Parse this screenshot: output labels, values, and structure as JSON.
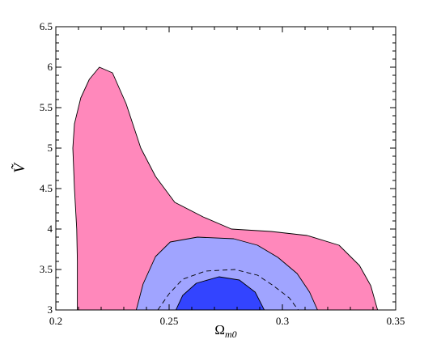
{
  "chart_data": {
    "type": "area",
    "title": "",
    "xlabel": "Ω",
    "xlabel_sub": "m0",
    "ylabel": "Ṽ",
    "xlim": [
      0.2,
      0.35
    ],
    "ylim": [
      3,
      6.5
    ],
    "grid": false,
    "xticks": [
      "0.2",
      "0.25",
      "0.3",
      "0.35"
    ],
    "yticks": [
      "3",
      "3.5",
      "4",
      "4.5",
      "5",
      "5.5",
      "6",
      "6.5"
    ],
    "colors": {
      "outer": "#ff88bb",
      "middle": "#a0a4ff",
      "inner": "#3344ff",
      "outline": "#000000"
    },
    "regions": [
      {
        "level": "outer",
        "points": [
          [
            0.2095,
            3.0
          ],
          [
            0.2095,
            3.6
          ],
          [
            0.2092,
            4.0
          ],
          [
            0.2082,
            4.5
          ],
          [
            0.2075,
            5.0
          ],
          [
            0.2082,
            5.3
          ],
          [
            0.211,
            5.62
          ],
          [
            0.2148,
            5.85
          ],
          [
            0.2192,
            6.0
          ],
          [
            0.225,
            5.93
          ],
          [
            0.231,
            5.55
          ],
          [
            0.2375,
            5.0
          ],
          [
            0.244,
            4.65
          ],
          [
            0.2525,
            4.33
          ],
          [
            0.265,
            4.15
          ],
          [
            0.2775,
            4.0
          ],
          [
            0.295,
            3.97
          ],
          [
            0.311,
            3.92
          ],
          [
            0.325,
            3.8
          ],
          [
            0.334,
            3.55
          ],
          [
            0.339,
            3.3
          ],
          [
            0.342,
            3.0
          ]
        ]
      },
      {
        "level": "middle",
        "points": [
          [
            0.2355,
            3.0
          ],
          [
            0.2385,
            3.32
          ],
          [
            0.244,
            3.66
          ],
          [
            0.2505,
            3.84
          ],
          [
            0.2625,
            3.9
          ],
          [
            0.2785,
            3.88
          ],
          [
            0.289,
            3.8
          ],
          [
            0.298,
            3.65
          ],
          [
            0.3065,
            3.45
          ],
          [
            0.312,
            3.22
          ],
          [
            0.3155,
            3.0
          ]
        ]
      },
      {
        "level": "inner",
        "points": [
          [
            0.253,
            3.0
          ],
          [
            0.256,
            3.18
          ],
          [
            0.262,
            3.33
          ],
          [
            0.272,
            3.41
          ],
          [
            0.281,
            3.37
          ],
          [
            0.288,
            3.22
          ],
          [
            0.292,
            3.0
          ]
        ]
      }
    ],
    "dashed_curve": [
      [
        0.245,
        3.0
      ],
      [
        0.25,
        3.2
      ],
      [
        0.256,
        3.38
      ],
      [
        0.266,
        3.48
      ],
      [
        0.279,
        3.5
      ],
      [
        0.289,
        3.43
      ],
      [
        0.296,
        3.3
      ],
      [
        0.303,
        3.15
      ],
      [
        0.307,
        3.0
      ]
    ]
  }
}
